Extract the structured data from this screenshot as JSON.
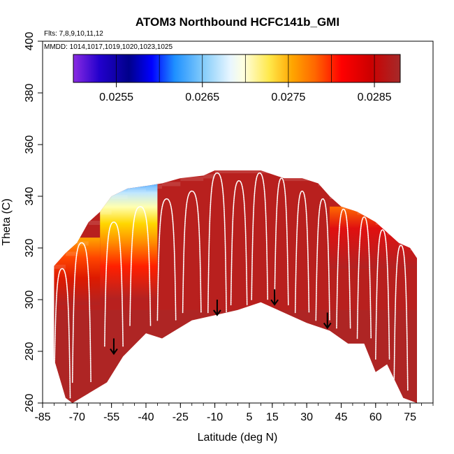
{
  "chart_data": {
    "type": "heatmap",
    "title": "ATOM3 Northbound HCFC141b_GMI",
    "note_flights": "Flts: 7,8,9,10,11,12",
    "note_dates": "MMDD: 1014,1017,1019,1020,1023,1025",
    "xlabel": "Latitude (deg N)",
    "ylabel": "Theta (C)",
    "xlim": [
      -85,
      85
    ],
    "ylim": [
      260,
      400
    ],
    "x_ticks": [
      -85,
      -70,
      -55,
      -40,
      -25,
      -10,
      5,
      15,
      30,
      45,
      60,
      75
    ],
    "y_ticks": [
      260,
      280,
      300,
      320,
      340,
      360,
      380,
      400
    ],
    "colorbar": {
      "range": [
        0.025,
        0.0288
      ],
      "tick_values": [
        0.0255,
        0.0265,
        0.0275,
        0.0285
      ],
      "tick_labels": [
        "0.0255",
        "0.0265",
        "0.0275",
        "0.0285"
      ],
      "colors": [
        "#7f20ff",
        "#00008b",
        "#0000ff",
        "#1e90ff",
        "#00bfff",
        "#bfe6ff",
        "#ffffff",
        "#ffffb0",
        "#ffd700",
        "#ffa500",
        "#ff4500",
        "#ff0000",
        "#cc0000",
        "#a52a2a"
      ]
    },
    "bottom_boundary": [
      [
        -80,
        277
      ],
      [
        -75,
        262
      ],
      [
        -72,
        260
      ],
      [
        -57,
        268
      ],
      [
        -50,
        278
      ],
      [
        -40,
        287
      ],
      [
        -33,
        285
      ],
      [
        -20,
        292
      ],
      [
        -10,
        294
      ],
      [
        0,
        296
      ],
      [
        10,
        299
      ],
      [
        20,
        295
      ],
      [
        30,
        291
      ],
      [
        40,
        288
      ],
      [
        48,
        283
      ],
      [
        55,
        283
      ],
      [
        60,
        272
      ],
      [
        65,
        275
      ],
      [
        72,
        262
      ],
      [
        78,
        260
      ]
    ],
    "top_boundary": [
      [
        -80,
        313
      ],
      [
        -75,
        318
      ],
      [
        -70,
        322
      ],
      [
        -65,
        330
      ],
      [
        -60,
        334
      ],
      [
        -55,
        340
      ],
      [
        -48,
        343
      ],
      [
        -40,
        344
      ],
      [
        -33,
        345
      ],
      [
        -25,
        347
      ],
      [
        -15,
        348
      ],
      [
        -10,
        350
      ],
      [
        0,
        350
      ],
      [
        10,
        350
      ],
      [
        20,
        347
      ],
      [
        28,
        347
      ],
      [
        35,
        345
      ],
      [
        40,
        340
      ],
      [
        45,
        336
      ],
      [
        52,
        334
      ],
      [
        60,
        330
      ],
      [
        65,
        326
      ],
      [
        70,
        322
      ],
      [
        75,
        320
      ],
      [
        78,
        316
      ]
    ],
    "dominant_value": 0.0286,
    "gradient_zones": [
      {
        "x": [
          -60,
          -35
        ],
        "top_value": 0.0262,
        "bottom_value": 0.0284
      },
      {
        "x": [
          -80,
          -60
        ],
        "top_value": 0.0276,
        "bottom_value": 0.0285
      },
      {
        "x": [
          40,
          78
        ],
        "top_value": 0.028,
        "bottom_value": 0.0286
      }
    ],
    "flight_profiles": [
      {
        "x_start": -80,
        "x_end": -73,
        "theta_top": 312,
        "theta_bottom": 262
      },
      {
        "x_start": -72,
        "x_end": -64,
        "theta_top": 322,
        "theta_bottom": 268
      },
      {
        "x_start": -58,
        "x_end": -50,
        "theta_top": 330,
        "theta_bottom": 282
      },
      {
        "x_start": -47,
        "x_end": -38,
        "theta_top": 336,
        "theta_bottom": 290
      },
      {
        "x_start": -35,
        "x_end": -27,
        "theta_top": 339,
        "theta_bottom": 292
      },
      {
        "x_start": -24,
        "x_end": -16,
        "theta_top": 342,
        "theta_bottom": 295
      },
      {
        "x_start": -13,
        "x_end": -5,
        "theta_top": 349,
        "theta_bottom": 295
      },
      {
        "x_start": -3,
        "x_end": 4,
        "theta_top": 346,
        "theta_bottom": 298
      },
      {
        "x_start": 6,
        "x_end": 13,
        "theta_top": 349,
        "theta_bottom": 300
      },
      {
        "x_start": 16,
        "x_end": 22,
        "theta_top": 347,
        "theta_bottom": 298
      },
      {
        "x_start": 25,
        "x_end": 31,
        "theta_top": 342,
        "theta_bottom": 295
      },
      {
        "x_start": 34,
        "x_end": 40,
        "theta_top": 339,
        "theta_bottom": 292
      },
      {
        "x_start": 43,
        "x_end": 49,
        "theta_top": 335,
        "theta_bottom": 289
      },
      {
        "x_start": 52,
        "x_end": 58,
        "theta_top": 332,
        "theta_bottom": 285
      },
      {
        "x_start": 60,
        "x_end": 66,
        "theta_top": 327,
        "theta_bottom": 277
      },
      {
        "x_start": 68,
        "x_end": 74,
        "theta_top": 321,
        "theta_bottom": 265
      }
    ],
    "arrows": [
      {
        "x": -54,
        "theta": 285
      },
      {
        "x": -9,
        "theta": 300
      },
      {
        "x": 16,
        "theta": 304
      },
      {
        "x": 39,
        "theta": 295
      }
    ]
  }
}
